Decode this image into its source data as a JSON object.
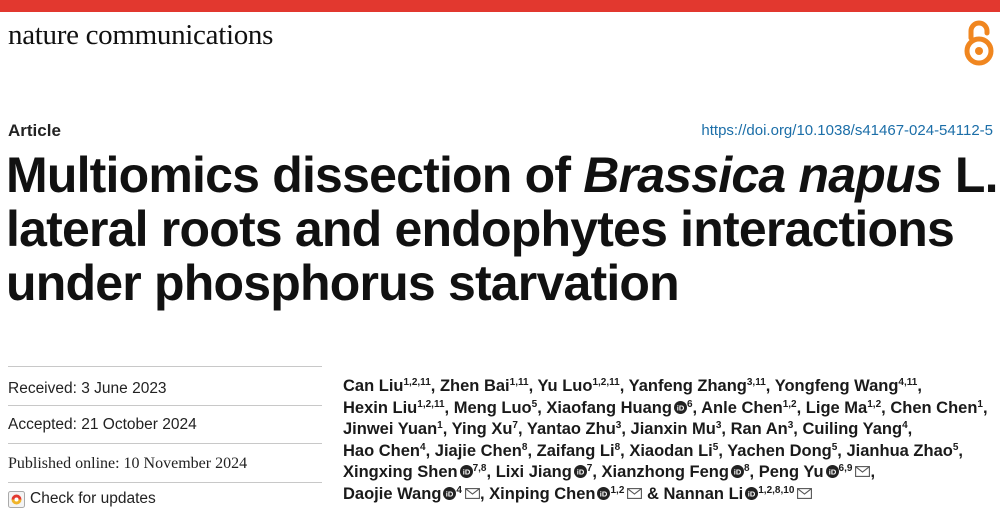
{
  "journal": "nature communications",
  "article_type": "Article",
  "doi": "https://doi.org/10.1038/s41467-024-54112-5",
  "title": {
    "part1": "Multiomics dissection of ",
    "species": "Brassica napus",
    "part2": " L.",
    "line2": "lateral roots and endophytes interactions",
    "line3": "under phosphorus starvation"
  },
  "dates": {
    "received": "Received: 3 June 2023",
    "accepted": "Accepted: 21 October 2024",
    "published": "Published online: 10 November 2024"
  },
  "check_updates": "Check for updates",
  "authors": [
    {
      "name": "Can Liu",
      "aff": "1,2,11"
    },
    {
      "name": "Zhen Bai",
      "aff": "1,11"
    },
    {
      "name": "Yu Luo",
      "aff": "1,2,11"
    },
    {
      "name": "Yanfeng Zhang",
      "aff": "3,11"
    },
    {
      "name": "Yongfeng Wang",
      "aff": "4,11"
    },
    {
      "name": "Hexin Liu",
      "aff": "1,2,11"
    },
    {
      "name": "Meng Luo",
      "aff": "5"
    },
    {
      "name": "Xiaofang Huang",
      "aff": "6",
      "orcid": true
    },
    {
      "name": "Anle Chen",
      "aff": "1,2"
    },
    {
      "name": "Lige Ma",
      "aff": "1,2"
    },
    {
      "name": "Chen Chen",
      "aff": "1"
    },
    {
      "name": "Jinwei Yuan",
      "aff": "1"
    },
    {
      "name": "Ying Xu",
      "aff": "7"
    },
    {
      "name": "Yantao Zhu",
      "aff": "3"
    },
    {
      "name": "Jianxin Mu",
      "aff": "3"
    },
    {
      "name": "Ran An",
      "aff": "3"
    },
    {
      "name": "Cuiling Yang",
      "aff": "4"
    },
    {
      "name": "Hao Chen",
      "aff": "4"
    },
    {
      "name": "Jiajie Chen",
      "aff": "8"
    },
    {
      "name": "Zaifang Li",
      "aff": "8"
    },
    {
      "name": "Xiaodan Li",
      "aff": "5"
    },
    {
      "name": "Yachen Dong",
      "aff": "5"
    },
    {
      "name": "Jianhua Zhao",
      "aff": "5"
    },
    {
      "name": "Xingxing Shen",
      "aff": "7,8",
      "orcid": true
    },
    {
      "name": "Lixi Jiang",
      "aff": "7",
      "orcid": true
    },
    {
      "name": "Xianzhong Feng",
      "aff": "8",
      "orcid": true
    },
    {
      "name": "Peng Yu",
      "aff": "6,9",
      "orcid": true,
      "mail": true
    },
    {
      "name": "Daojie Wang",
      "aff": "4",
      "orcid": true,
      "mail": true
    },
    {
      "name": "Xinping Chen",
      "aff": "1,2",
      "orcid": true,
      "mail": true
    },
    {
      "name": "Nannan Li",
      "aff": "1,2,8,10",
      "orcid": true,
      "mail": true,
      "prefix": "& "
    }
  ],
  "colors": {
    "topbar": "#e2382f",
    "link": "#1b6ea8",
    "orcid": "#222222",
    "oa": "#f0861f"
  },
  "icons": {
    "open_access": "open-access-icon",
    "orcid": "orcid-icon",
    "mail": "mail-icon",
    "updates": "check-updates-icon"
  }
}
